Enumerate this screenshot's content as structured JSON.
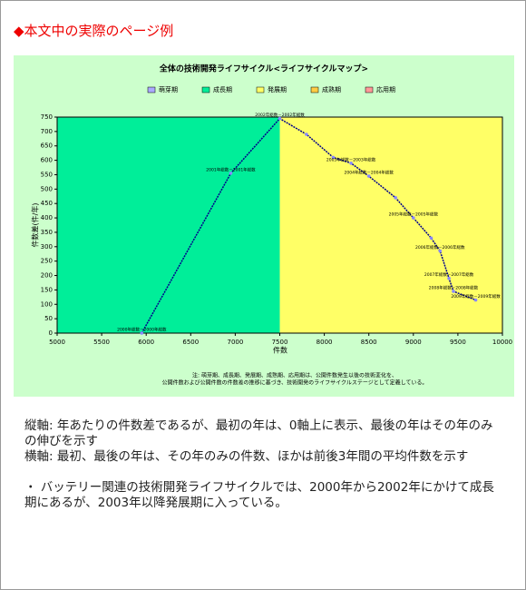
{
  "header": {
    "title": "◆本文中の実際のページ例"
  },
  "chart_data": {
    "type": "line",
    "title": "全体の技術開発ライフサイクル<ライフサイクルマップ>",
    "x_label": "件数",
    "y_label": "件数差(件/年)",
    "legend": [
      {
        "name": "萌芽期",
        "color": "#aaaaff"
      },
      {
        "name": "成長期",
        "color": "#00ee99"
      },
      {
        "name": "発展期",
        "color": "#ffff66"
      },
      {
        "name": "成熟期",
        "color": "#ffcc44"
      },
      {
        "name": "応用期",
        "color": "#ff9999"
      }
    ],
    "regions": [
      {
        "legend": 1,
        "from": 5000,
        "to": 7500
      },
      {
        "legend": 2,
        "from": 7500,
        "to": 10000
      }
    ],
    "series": [
      {
        "name": "全体",
        "color": "#00008b",
        "x": [
          5950,
          6950,
          7500,
          7800,
          8100,
          8300,
          8500,
          8800,
          9000,
          9200,
          9300,
          9400,
          9450,
          9700
        ],
        "values": [
          0,
          555,
          745,
          690,
          610,
          590,
          545,
          470,
          400,
          330,
          285,
          190,
          145,
          115
        ],
        "point_labels": [
          "2000年総数－2000年総数",
          "2001年総数－2001年総数",
          "2002年総数－2002年総数",
          null,
          null,
          "2003年総数－2003年総数",
          "2004年総数－2004年総数",
          null,
          "2005年総数－2005年総数",
          null,
          "2006年総数－2006年総数",
          "2007年総数－2007年総数",
          "2008年総数－2008年総数",
          "2009年総数－2009年総数"
        ]
      }
    ],
    "xlim": [
      5000,
      10000
    ],
    "xticks": [
      5000,
      5500,
      6000,
      6500,
      7000,
      7500,
      8000,
      8500,
      9000,
      9500,
      10000
    ],
    "ylim": [
      0,
      750
    ],
    "yticks": [
      0,
      50,
      100,
      150,
      200,
      250,
      300,
      350,
      400,
      450,
      500,
      550,
      600,
      650,
      700,
      750
    ],
    "note": [
      "注: 萌芽期、成長期、発展期、成熟期、応用期は、公開件数発生以後の技術変化を、",
      "公開件数および公開件数の件数差の推移に基づき、技術開発のライフサイクルステージとして定義している。"
    ]
  },
  "body": {
    "paragraphs": [
      "縦軸: 年あたりの件数差であるが、最初の年は、0軸上に表示、最後の年はその年のみの伸びを示す",
      "横軸: 最初、最後の年は、その年のみの件数、ほかは前後3年間の平均件数を示す",
      "・ バッテリー関連の技術開発ライフサイクルでは、2000年から2002年にかけて成長期にあるが、2003年以降発展期に入っている。"
    ]
  }
}
